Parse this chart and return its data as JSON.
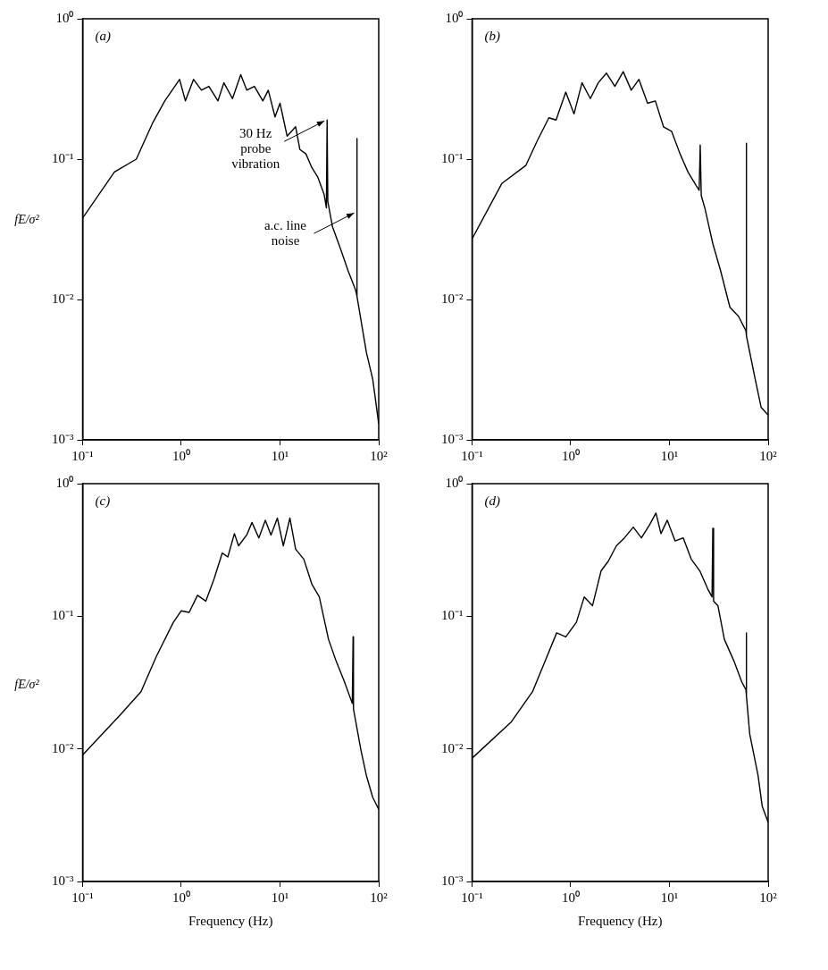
{
  "chart_data": [
    {
      "type": "line",
      "title": "(a)",
      "ylabel": "fE/σ²",
      "log": "xy",
      "color": "#000000",
      "xlim": [
        0.1,
        100
      ],
      "ylim": [
        0.001,
        1
      ],
      "xticks": [
        {
          "value": 0.1,
          "label": "10⁻¹"
        },
        {
          "value": 1,
          "label": "10⁰"
        },
        {
          "value": 10,
          "label": "10¹"
        },
        {
          "value": 100,
          "label": "10²"
        }
      ],
      "yticks": [
        {
          "value": 0.001,
          "label": "10⁻³"
        },
        {
          "value": 0.01,
          "label": "10⁻²"
        },
        {
          "value": 0.1,
          "label": "10⁻¹"
        },
        {
          "value": 1,
          "label": "10⁰"
        }
      ],
      "annotations": [
        {
          "text": "30 Hz probe vibration",
          "x": 30,
          "y": 0.19
        },
        {
          "text": "a.c. line noise",
          "x": 60,
          "y": 0.042
        }
      ],
      "x": [
        0.1,
        0.21,
        0.35,
        0.51,
        0.68,
        0.96,
        1.1,
        1.33,
        1.6,
        1.9,
        2.35,
        2.7,
        3.3,
        4,
        4.6,
        5.5,
        6.7,
        7.6,
        8.9,
        10,
        11.8,
        14.4,
        15.9,
        18.3,
        21,
        24,
        28,
        29.5,
        30,
        30.5,
        34,
        41,
        49,
        58,
        59.5,
        60,
        60.5,
        75,
        87,
        100
      ],
      "values": [
        0.038,
        0.081,
        0.1,
        0.18,
        0.26,
        0.37,
        0.26,
        0.37,
        0.31,
        0.33,
        0.26,
        0.35,
        0.27,
        0.4,
        0.31,
        0.33,
        0.26,
        0.31,
        0.2,
        0.25,
        0.146,
        0.17,
        0.117,
        0.109,
        0.087,
        0.075,
        0.056,
        0.045,
        0.19,
        0.05,
        0.033,
        0.023,
        0.016,
        0.0118,
        0.011,
        0.14,
        0.0105,
        0.0042,
        0.0027,
        0.0013
      ]
    },
    {
      "type": "line",
      "title": "(b)",
      "log": "xy",
      "color": "#000000",
      "xlim": [
        0.1,
        100
      ],
      "ylim": [
        0.001,
        1
      ],
      "xticks": [
        {
          "value": 0.1,
          "label": "10⁻¹"
        },
        {
          "value": 1,
          "label": "10⁰"
        },
        {
          "value": 10,
          "label": "10¹"
        },
        {
          "value": 100,
          "label": "10²"
        }
      ],
      "yticks": [
        {
          "value": 0.001,
          "label": "10⁻³"
        },
        {
          "value": 0.01,
          "label": "10⁻²"
        },
        {
          "value": 0.1,
          "label": "10⁻¹"
        },
        {
          "value": 1,
          "label": "10⁰"
        }
      ],
      "x": [
        0.1,
        0.2,
        0.35,
        0.46,
        0.6,
        0.71,
        0.89,
        1.08,
        1.3,
        1.58,
        1.9,
        2.3,
        2.8,
        3.4,
        4.1,
        4.9,
        6,
        7.2,
        8.7,
        10.5,
        12.8,
        15.4,
        18.6,
        20,
        20.5,
        21,
        22.8,
        27.5,
        33,
        41,
        50,
        59.5,
        60,
        60.5,
        74,
        85,
        100
      ],
      "values": [
        0.027,
        0.067,
        0.09,
        0.136,
        0.197,
        0.19,
        0.3,
        0.21,
        0.35,
        0.27,
        0.35,
        0.41,
        0.33,
        0.42,
        0.31,
        0.37,
        0.25,
        0.26,
        0.17,
        0.158,
        0.109,
        0.081,
        0.065,
        0.06,
        0.126,
        0.055,
        0.045,
        0.025,
        0.016,
        0.0088,
        0.0076,
        0.006,
        0.13,
        0.0055,
        0.0027,
        0.0017,
        0.0015
      ]
    },
    {
      "type": "line",
      "title": "(c)",
      "ylabel": "fE/σ²",
      "xlabel": "Frequency (Hz)",
      "log": "xy",
      "color": "#000000",
      "xlim": [
        0.1,
        100
      ],
      "ylim": [
        0.001,
        1
      ],
      "xticks": [
        {
          "value": 0.1,
          "label": "10⁻¹"
        },
        {
          "value": 1,
          "label": "10⁰"
        },
        {
          "value": 10,
          "label": "10¹"
        },
        {
          "value": 100,
          "label": "10²"
        }
      ],
      "yticks": [
        {
          "value": 0.001,
          "label": "10⁻³"
        },
        {
          "value": 0.01,
          "label": "10⁻²"
        },
        {
          "value": 0.1,
          "label": "10⁻¹"
        },
        {
          "value": 1,
          "label": "10⁰"
        }
      ],
      "x": [
        0.1,
        0.24,
        0.39,
        0.56,
        0.83,
        1,
        1.2,
        1.46,
        1.77,
        2.14,
        2.6,
        2.96,
        3.45,
        3.8,
        4.6,
        5.2,
        6.1,
        7.1,
        8.1,
        9.4,
        10.8,
        12.6,
        14.4,
        17.4,
        21,
        25,
        31,
        37,
        45,
        54,
        55,
        55.5,
        66,
        75,
        87,
        100
      ],
      "values": [
        0.009,
        0.018,
        0.027,
        0.05,
        0.09,
        0.11,
        0.107,
        0.144,
        0.13,
        0.19,
        0.3,
        0.28,
        0.42,
        0.34,
        0.41,
        0.51,
        0.39,
        0.53,
        0.41,
        0.55,
        0.34,
        0.55,
        0.32,
        0.27,
        0.175,
        0.14,
        0.067,
        0.046,
        0.032,
        0.022,
        0.07,
        0.02,
        0.0098,
        0.0063,
        0.0043,
        0.0035
      ]
    },
    {
      "type": "line",
      "title": "(d)",
      "xlabel": "Frequency (Hz)",
      "log": "xy",
      "color": "#000000",
      "xlim": [
        0.1,
        100
      ],
      "ylim": [
        0.001,
        1
      ],
      "xticks": [
        {
          "value": 0.1,
          "label": "10⁻¹"
        },
        {
          "value": 1,
          "label": "10⁰"
        },
        {
          "value": 10,
          "label": "10¹"
        },
        {
          "value": 100,
          "label": "10²"
        }
      ],
      "yticks": [
        {
          "value": 0.001,
          "label": "10⁻³"
        },
        {
          "value": 0.01,
          "label": "10⁻²"
        },
        {
          "value": 0.1,
          "label": "10⁻¹"
        },
        {
          "value": 1,
          "label": "10⁰"
        }
      ],
      "x": [
        0.1,
        0.25,
        0.41,
        0.53,
        0.72,
        0.89,
        1.14,
        1.37,
        1.66,
        2.03,
        2.4,
        2.9,
        3.5,
        4.3,
        5.2,
        6.3,
        7.3,
        8.2,
        9.5,
        11.4,
        13.8,
        16.6,
        20.3,
        24.5,
        27,
        27.5,
        28,
        31,
        36,
        45,
        54,
        59.5,
        60,
        60.5,
        65,
        79,
        87,
        100
      ],
      "values": [
        0.0085,
        0.016,
        0.027,
        0.043,
        0.075,
        0.07,
        0.09,
        0.14,
        0.12,
        0.22,
        0.26,
        0.34,
        0.39,
        0.47,
        0.39,
        0.49,
        0.6,
        0.42,
        0.53,
        0.37,
        0.39,
        0.27,
        0.22,
        0.16,
        0.14,
        0.46,
        0.13,
        0.12,
        0.067,
        0.046,
        0.032,
        0.028,
        0.075,
        0.025,
        0.013,
        0.0063,
        0.0037,
        0.0028
      ]
    }
  ]
}
